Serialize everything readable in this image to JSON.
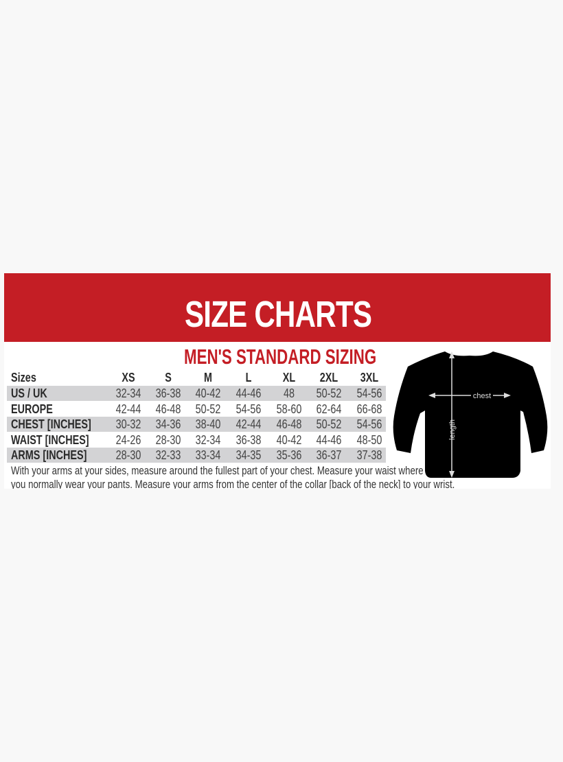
{
  "title": "SIZE CHARTS",
  "subtitle": "MEN'S STANDARD SIZING",
  "colors": {
    "banner": "#c41e25",
    "row_shade": "#d3d3d5"
  },
  "table": {
    "header": {
      "label": "Sizes",
      "values": [
        "XS",
        "S",
        "M",
        "L",
        "XL",
        "2XL",
        "3XL"
      ]
    },
    "rows": [
      {
        "label": "US / UK",
        "values": [
          "32-34",
          "36-38",
          "40-42",
          "44-46",
          "48",
          "50-52",
          "54-56"
        ]
      },
      {
        "label": "EUROPE",
        "values": [
          "42-44",
          "46-48",
          "50-52",
          "54-56",
          "58-60",
          "62-64",
          "66-68"
        ]
      },
      {
        "label": "CHEST [INCHES]",
        "values": [
          "30-32",
          "34-36",
          "38-40",
          "42-44",
          "46-48",
          "50-52",
          "54-56"
        ]
      },
      {
        "label": "WAIST [INCHES]",
        "values": [
          "24-26",
          "28-30",
          "32-34",
          "36-38",
          "40-42",
          "44-46",
          "48-50"
        ]
      },
      {
        "label": "ARMS [INCHES]",
        "values": [
          "28-30",
          "32-33",
          "33-34",
          "34-35",
          "35-36",
          "36-37",
          "37-38"
        ]
      }
    ]
  },
  "notes": [
    "With your arms at your sides, measure around the fullest part of your chest. Measure your waist where",
    "you normally wear your pants. Measure your arms from the center of the collar [back of the neck] to your wrist."
  ],
  "diagram": {
    "chest_label": "chest",
    "length_label": "length",
    "icon": "sweater-icon"
  }
}
